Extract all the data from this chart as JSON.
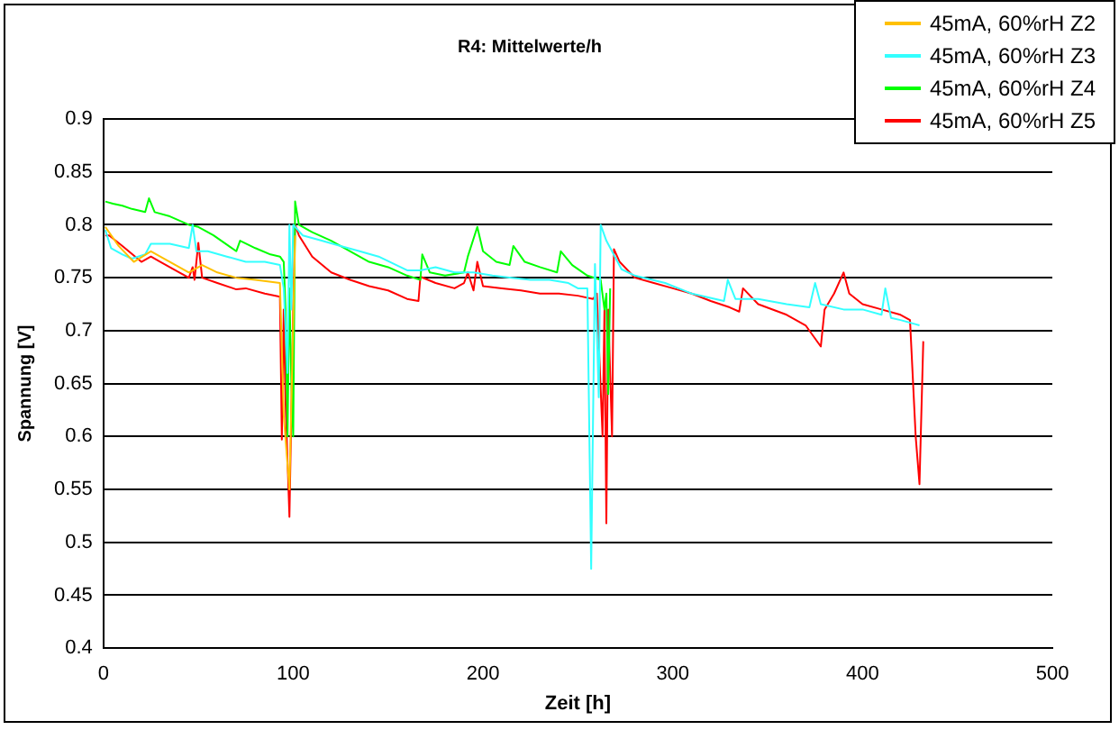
{
  "chart_data": {
    "type": "line",
    "title": "R4: Mittelwerte/h",
    "xlabel": "Zeit [h]",
    "ylabel": "Spannung [V]",
    "xlim": [
      0,
      500
    ],
    "xticks": [
      0,
      100,
      200,
      300,
      400,
      500
    ],
    "ylim": [
      0.4,
      0.9
    ],
    "yticks": [
      0.4,
      0.45,
      0.5,
      0.55,
      0.6,
      0.65,
      0.7,
      0.75,
      0.8,
      0.85,
      0.9
    ],
    "grid": "y",
    "legend": "top right",
    "marker": "none",
    "line_style": "solid",
    "series": [
      {
        "name": "45mA, 60%rH Z2",
        "color": "#ffc000",
        "x": [
          1,
          8,
          16,
          25,
          35,
          45,
          52,
          60,
          70,
          80,
          93,
          95,
          98,
          101
        ],
        "values": [
          0.798,
          0.78,
          0.765,
          0.775,
          0.765,
          0.755,
          0.762,
          0.755,
          0.75,
          0.748,
          0.745,
          0.62,
          0.55,
          0.79
        ]
      },
      {
        "name": "45mA, 60%rH Z3",
        "color": "#33ffff",
        "x": [
          1,
          4,
          10,
          15,
          22,
          25,
          35,
          45,
          47,
          49,
          55,
          65,
          75,
          85,
          93,
          95,
          97,
          98,
          99,
          100,
          105,
          115,
          125,
          135,
          145,
          160,
          167,
          175,
          185,
          195,
          205,
          215,
          225,
          235,
          245,
          250,
          255,
          257,
          259,
          261,
          262,
          265,
          273,
          280,
          296,
          310,
          327,
          329,
          333,
          345,
          360,
          372,
          375,
          378,
          390,
          400,
          410,
          412,
          415,
          420,
          430
        ],
        "values": [
          0.795,
          0.778,
          0.772,
          0.768,
          0.772,
          0.782,
          0.782,
          0.778,
          0.8,
          0.775,
          0.775,
          0.77,
          0.765,
          0.765,
          0.762,
          0.74,
          0.66,
          0.8,
          0.72,
          0.8,
          0.79,
          0.785,
          0.78,
          0.775,
          0.77,
          0.757,
          0.757,
          0.76,
          0.755,
          0.755,
          0.752,
          0.75,
          0.748,
          0.748,
          0.745,
          0.74,
          0.74,
          0.475,
          0.763,
          0.637,
          0.8,
          0.785,
          0.758,
          0.752,
          0.745,
          0.735,
          0.728,
          0.748,
          0.73,
          0.73,
          0.725,
          0.722,
          0.745,
          0.725,
          0.72,
          0.72,
          0.715,
          0.74,
          0.712,
          0.71,
          0.705
        ]
      },
      {
        "name": "45mA, 60%rH Z4",
        "color": "#00ff00",
        "x": [
          1,
          5,
          10,
          15,
          22,
          24,
          27,
          35,
          45,
          50,
          58,
          66,
          70,
          72,
          80,
          88,
          93,
          95,
          96,
          97,
          98,
          99,
          100,
          101,
          103,
          110,
          120,
          130,
          140,
          150,
          160,
          167,
          168,
          172,
          180,
          190,
          192,
          197,
          200,
          207,
          214,
          216,
          222,
          230,
          239,
          241,
          247,
          255,
          262,
          264,
          265,
          266,
          267
        ],
        "values": [
          0.822,
          0.82,
          0.818,
          0.815,
          0.812,
          0.825,
          0.812,
          0.808,
          0.8,
          0.798,
          0.79,
          0.78,
          0.775,
          0.785,
          0.778,
          0.772,
          0.77,
          0.765,
          0.72,
          0.6,
          0.74,
          0.65,
          0.6,
          0.822,
          0.8,
          0.793,
          0.785,
          0.775,
          0.765,
          0.76,
          0.752,
          0.748,
          0.772,
          0.755,
          0.752,
          0.755,
          0.77,
          0.798,
          0.775,
          0.765,
          0.762,
          0.78,
          0.765,
          0.76,
          0.755,
          0.775,
          0.762,
          0.752,
          0.748,
          0.72,
          0.735,
          0.64,
          0.74
        ]
      },
      {
        "name": "45mA, 60%rH Z5",
        "color": "#ff0000",
        "x": [
          1,
          3,
          10,
          20,
          25,
          30,
          40,
          45,
          47,
          48,
          50,
          52,
          60,
          70,
          75,
          85,
          93,
          94,
          95,
          96,
          98,
          100,
          101,
          103,
          110,
          120,
          130,
          140,
          150,
          160,
          166,
          167,
          175,
          185,
          190,
          192,
          195,
          197,
          200,
          210,
          220,
          230,
          240,
          250,
          258,
          260,
          263,
          264,
          265,
          266,
          268,
          269,
          272,
          280,
          290,
          300,
          310,
          320,
          330,
          335,
          337,
          345,
          360,
          370,
          378,
          380,
          385,
          390,
          393,
          400,
          410,
          420,
          425,
          428,
          430,
          432
        ],
        "values": [
          0.79,
          0.79,
          0.78,
          0.765,
          0.77,
          0.765,
          0.755,
          0.75,
          0.76,
          0.748,
          0.783,
          0.75,
          0.745,
          0.739,
          0.74,
          0.735,
          0.732,
          0.597,
          0.72,
          0.63,
          0.524,
          0.72,
          0.8,
          0.79,
          0.77,
          0.755,
          0.748,
          0.742,
          0.738,
          0.73,
          0.728,
          0.751,
          0.745,
          0.74,
          0.745,
          0.755,
          0.738,
          0.765,
          0.742,
          0.74,
          0.738,
          0.735,
          0.735,
          0.733,
          0.73,
          0.735,
          0.6,
          0.72,
          0.518,
          0.72,
          0.6,
          0.777,
          0.765,
          0.75,
          0.745,
          0.74,
          0.735,
          0.728,
          0.722,
          0.718,
          0.74,
          0.725,
          0.715,
          0.705,
          0.685,
          0.72,
          0.735,
          0.755,
          0.735,
          0.725,
          0.72,
          0.715,
          0.71,
          0.6,
          0.555,
          0.69
        ]
      }
    ]
  }
}
